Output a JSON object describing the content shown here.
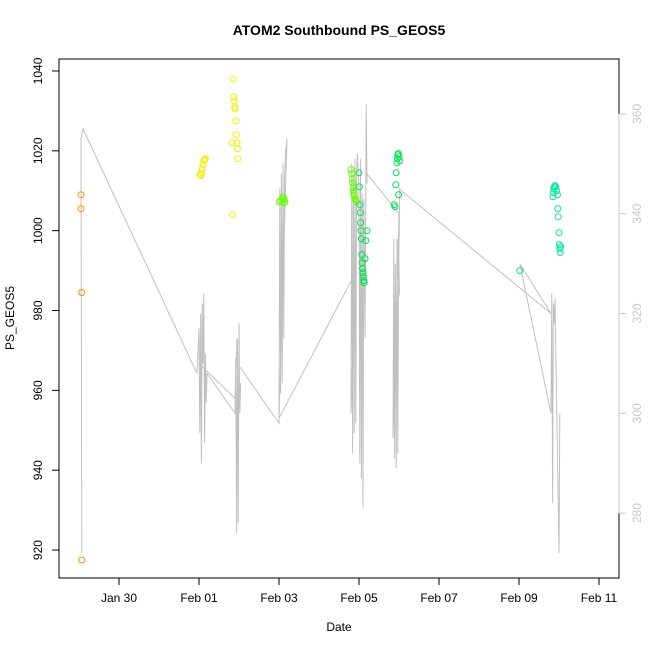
{
  "chart_data": {
    "type": "scatter",
    "title": "ATOM2 Southbound PS_GEOS5",
    "xlabel": "Date",
    "ylabel": "PS_GEOS5",
    "x_tick_labels": [
      "Jan 30",
      "Feb 01",
      "Feb 03",
      "Feb 05",
      "Feb 07",
      "Feb 09",
      "Feb 11"
    ],
    "x_tick_days": [
      0,
      2,
      4,
      6,
      8,
      10,
      12
    ],
    "xlim_days": [
      -1.5,
      12.5
    ],
    "ylim": [
      913,
      1043
    ],
    "y_ticks": [
      920,
      940,
      960,
      980,
      1000,
      1020,
      1040
    ],
    "y2lim": [
      267,
      371
    ],
    "y2_ticks": [
      280,
      300,
      320,
      340,
      360
    ],
    "grid": false,
    "series": [
      {
        "color": "#ff8c00",
        "points": [
          [
            -0.95,
            1009
          ],
          [
            -0.95,
            1005.5
          ],
          [
            -0.93,
            984.5
          ],
          [
            -0.93,
            917.5
          ]
        ]
      },
      {
        "color": "#f0f000",
        "points": [
          [
            2.02,
            1014
          ],
          [
            2.04,
            1013.8
          ],
          [
            2.06,
            1014.5
          ],
          [
            2.08,
            1015.5
          ],
          [
            2.1,
            1016.5
          ],
          [
            2.12,
            1017.5
          ],
          [
            2.14,
            1017.8
          ],
          [
            2.16,
            1018
          ],
          [
            2.85,
            1038
          ],
          [
            2.87,
            1033.5
          ],
          [
            2.88,
            1032.5
          ],
          [
            2.89,
            1031
          ],
          [
            2.9,
            1030.5
          ],
          [
            2.92,
            1027.5
          ],
          [
            2.93,
            1024
          ],
          [
            2.95,
            1022
          ],
          [
            2.96,
            1020.5
          ],
          [
            2.97,
            1018
          ],
          [
            2.83,
            1022
          ],
          [
            2.84,
            1004
          ]
        ]
      },
      {
        "color": "#66ff00",
        "points": [
          [
            4.0,
            1007.2
          ],
          [
            4.05,
            1007.5
          ],
          [
            4.08,
            1008
          ],
          [
            4.1,
            1008.5
          ],
          [
            4.13,
            1007.8
          ],
          [
            4.15,
            1007.2
          ],
          [
            4.12,
            1007
          ],
          [
            5.8,
            1015.3
          ],
          [
            5.82,
            1014.3
          ],
          [
            5.83,
            1013
          ],
          [
            5.84,
            1012
          ],
          [
            5.85,
            1011
          ],
          [
            5.86,
            1010
          ],
          [
            5.87,
            1009.3
          ],
          [
            5.88,
            1008.8
          ],
          [
            5.9,
            1008
          ],
          [
            5.92,
            1007.6
          ],
          [
            5.94,
            1007.2
          ]
        ]
      },
      {
        "color": "#00e050",
        "points": [
          [
            6.0,
            1014.5
          ],
          [
            6.01,
            1011
          ],
          [
            6.02,
            1006.5
          ],
          [
            6.03,
            1004.5
          ],
          [
            6.04,
            1002
          ],
          [
            6.05,
            1000
          ],
          [
            6.06,
            998
          ],
          [
            6.07,
            994
          ],
          [
            6.08,
            992
          ],
          [
            6.09,
            990.5
          ],
          [
            6.1,
            989.5
          ],
          [
            6.11,
            988.5
          ],
          [
            6.12,
            987.5
          ],
          [
            6.13,
            987
          ],
          [
            6.15,
            993
          ],
          [
            6.17,
            997.5
          ],
          [
            6.2,
            1000
          ],
          [
            6.88,
            1006.5
          ],
          [
            6.9,
            1006
          ],
          [
            6.92,
            1011.5
          ],
          [
            6.93,
            1014.5
          ],
          [
            6.95,
            1017
          ],
          [
            6.96,
            1018
          ],
          [
            6.97,
            1019
          ],
          [
            6.98,
            1019.3
          ],
          [
            7.0,
            1018.5
          ],
          [
            7.02,
            1017.5
          ],
          [
            6.99,
            1009
          ]
        ]
      },
      {
        "color": "#00e8a0",
        "points": [
          [
            10.02,
            990
          ],
          [
            10.85,
            1008.5
          ],
          [
            10.86,
            1009.5
          ],
          [
            10.87,
            1010.5
          ],
          [
            10.88,
            1011
          ],
          [
            10.9,
            1011.3
          ],
          [
            10.92,
            1011
          ],
          [
            10.94,
            1010
          ],
          [
            10.96,
            1009
          ],
          [
            10.97,
            1005.5
          ],
          [
            10.98,
            1003.5
          ],
          [
            11.0,
            999.5
          ],
          [
            11.01,
            996.5
          ],
          [
            11.02,
            995.5
          ],
          [
            11.03,
            994.5
          ],
          [
            11.04,
            996
          ]
        ]
      }
    ],
    "right_axis_line": {
      "color": "#c0c0c0",
      "points": [
        [
          -0.95,
          355
        ],
        [
          -0.93,
          272
        ],
        [
          -0.95,
          355
        ],
        [
          -0.9,
          357
        ],
        [
          1.95,
          308
        ],
        [
          2.0,
          317
        ],
        [
          2.02,
          296
        ],
        [
          2.04,
          320
        ],
        [
          2.06,
          290
        ],
        [
          2.08,
          322
        ],
        [
          2.1,
          310
        ],
        [
          2.12,
          324
        ],
        [
          2.14,
          294
        ],
        [
          2.16,
          312
        ],
        [
          2.18,
          302
        ],
        [
          2.2,
          308
        ],
        [
          2.9,
          300
        ],
        [
          2.92,
          311
        ],
        [
          2.94,
          276
        ],
        [
          2.96,
          315
        ],
        [
          2.98,
          278
        ],
        [
          3.0,
          318
        ],
        [
          3.02,
          300
        ],
        [
          3.04,
          306
        ],
        [
          2.9,
          303
        ],
        [
          2.0,
          310
        ],
        [
          2.9,
          303
        ],
        [
          2.95,
          315
        ],
        [
          2.96,
          310
        ],
        [
          4.0,
          298
        ],
        [
          4.02,
          345
        ],
        [
          4.04,
          304
        ],
        [
          4.06,
          348
        ],
        [
          4.08,
          306
        ],
        [
          4.1,
          350
        ],
        [
          4.12,
          315
        ],
        [
          4.14,
          347
        ],
        [
          4.16,
          352
        ],
        [
          4.2,
          355
        ],
        [
          4.0,
          299
        ],
        [
          5.9,
          328
        ],
        [
          5.8,
          300
        ],
        [
          5.82,
          350
        ],
        [
          5.84,
          292
        ],
        [
          5.86,
          348
        ],
        [
          5.88,
          296
        ],
        [
          5.9,
          351
        ],
        [
          5.92,
          298
        ],
        [
          5.94,
          348
        ],
        [
          5.96,
          352
        ],
        [
          6.0,
          345
        ],
        [
          6.02,
          290
        ],
        [
          6.04,
          351
        ],
        [
          6.06,
          287
        ],
        [
          6.08,
          344
        ],
        [
          6.1,
          281
        ],
        [
          6.12,
          343
        ],
        [
          6.15,
          315
        ],
        [
          6.18,
          362
        ],
        [
          6.2,
          346
        ],
        [
          6.2,
          348
        ],
        [
          7.0,
          340
        ],
        [
          6.85,
          295
        ],
        [
          6.87,
          335
        ],
        [
          6.89,
          291
        ],
        [
          6.91,
          330
        ],
        [
          6.93,
          289
        ],
        [
          6.95,
          335
        ],
        [
          6.97,
          292
        ],
        [
          6.99,
          334
        ],
        [
          7.01,
          324
        ],
        [
          6.98,
          323
        ],
        [
          7.02,
          345
        ],
        [
          7.0,
          345
        ],
        [
          10.8,
          320
        ],
        [
          10.02,
          330
        ],
        [
          10.8,
          300
        ],
        [
          10.82,
          324
        ],
        [
          10.84,
          282
        ],
        [
          10.86,
          322
        ],
        [
          10.88,
          318
        ],
        [
          10.9,
          323
        ],
        [
          11.0,
          272
        ],
        [
          11.02,
          300
        ]
      ]
    }
  }
}
